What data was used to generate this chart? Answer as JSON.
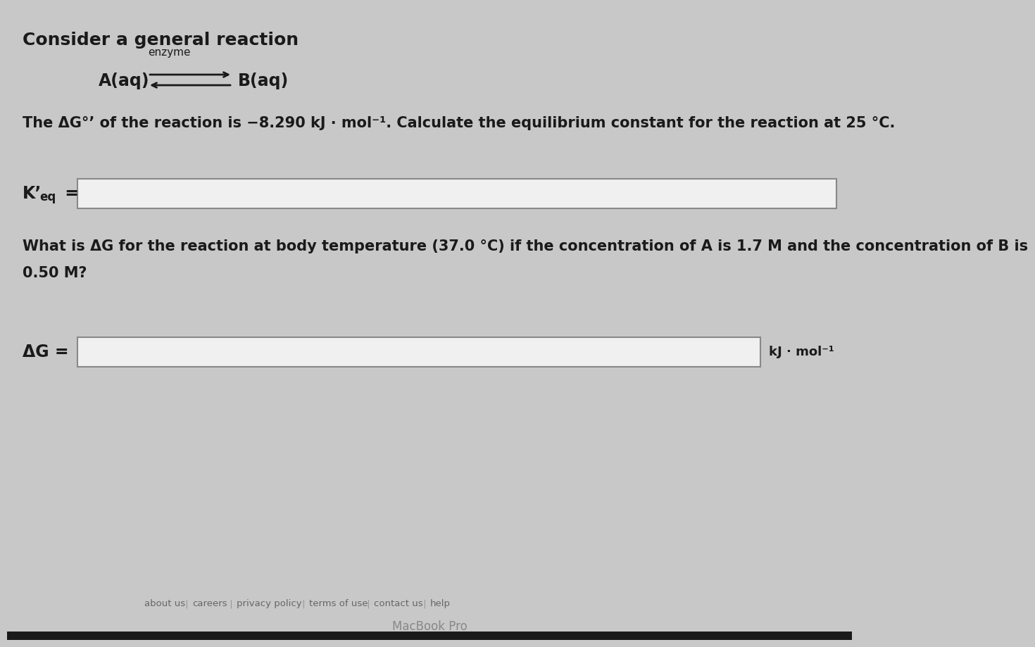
{
  "bg_color": "#c8c8c8",
  "content_bg": "#e0e0e0",
  "title_text": "Consider a general reaction",
  "enzyme_label": "enzyme",
  "reaction_A": "A(aq)",
  "reaction_B": "B(aq)",
  "problem_text1a": "The ΔG°’ of the reaction is −8.290 kJ · mol",
  "problem_text1b": "−1",
  "problem_text1c": ". Calculate the equilibrium constant for the reaction at 25 °C.",
  "keq_label_main": "K’",
  "keq_label_sub": "eq",
  "keq_equals": " =",
  "problem_text2a": "What is ΔG for the reaction at body temperature (37.0 °C) if the concentration of A is 1.7 M and the concentration of B is",
  "problem_text2b": "0.50 M?",
  "ag_label": "ΔG =",
  "ag_units": "kJ · mol⁻¹",
  "footer_items": [
    "about us",
    "careers",
    "privacy policy",
    "terms of use",
    "contact us",
    "help"
  ],
  "footer_text": "MacBook Pro",
  "input_box_color": "#f0f0f0",
  "input_box_border": "#888888",
  "text_color": "#1a1a1a",
  "footer_color": "#666666",
  "dark_bar_color": "#1a1a1a"
}
